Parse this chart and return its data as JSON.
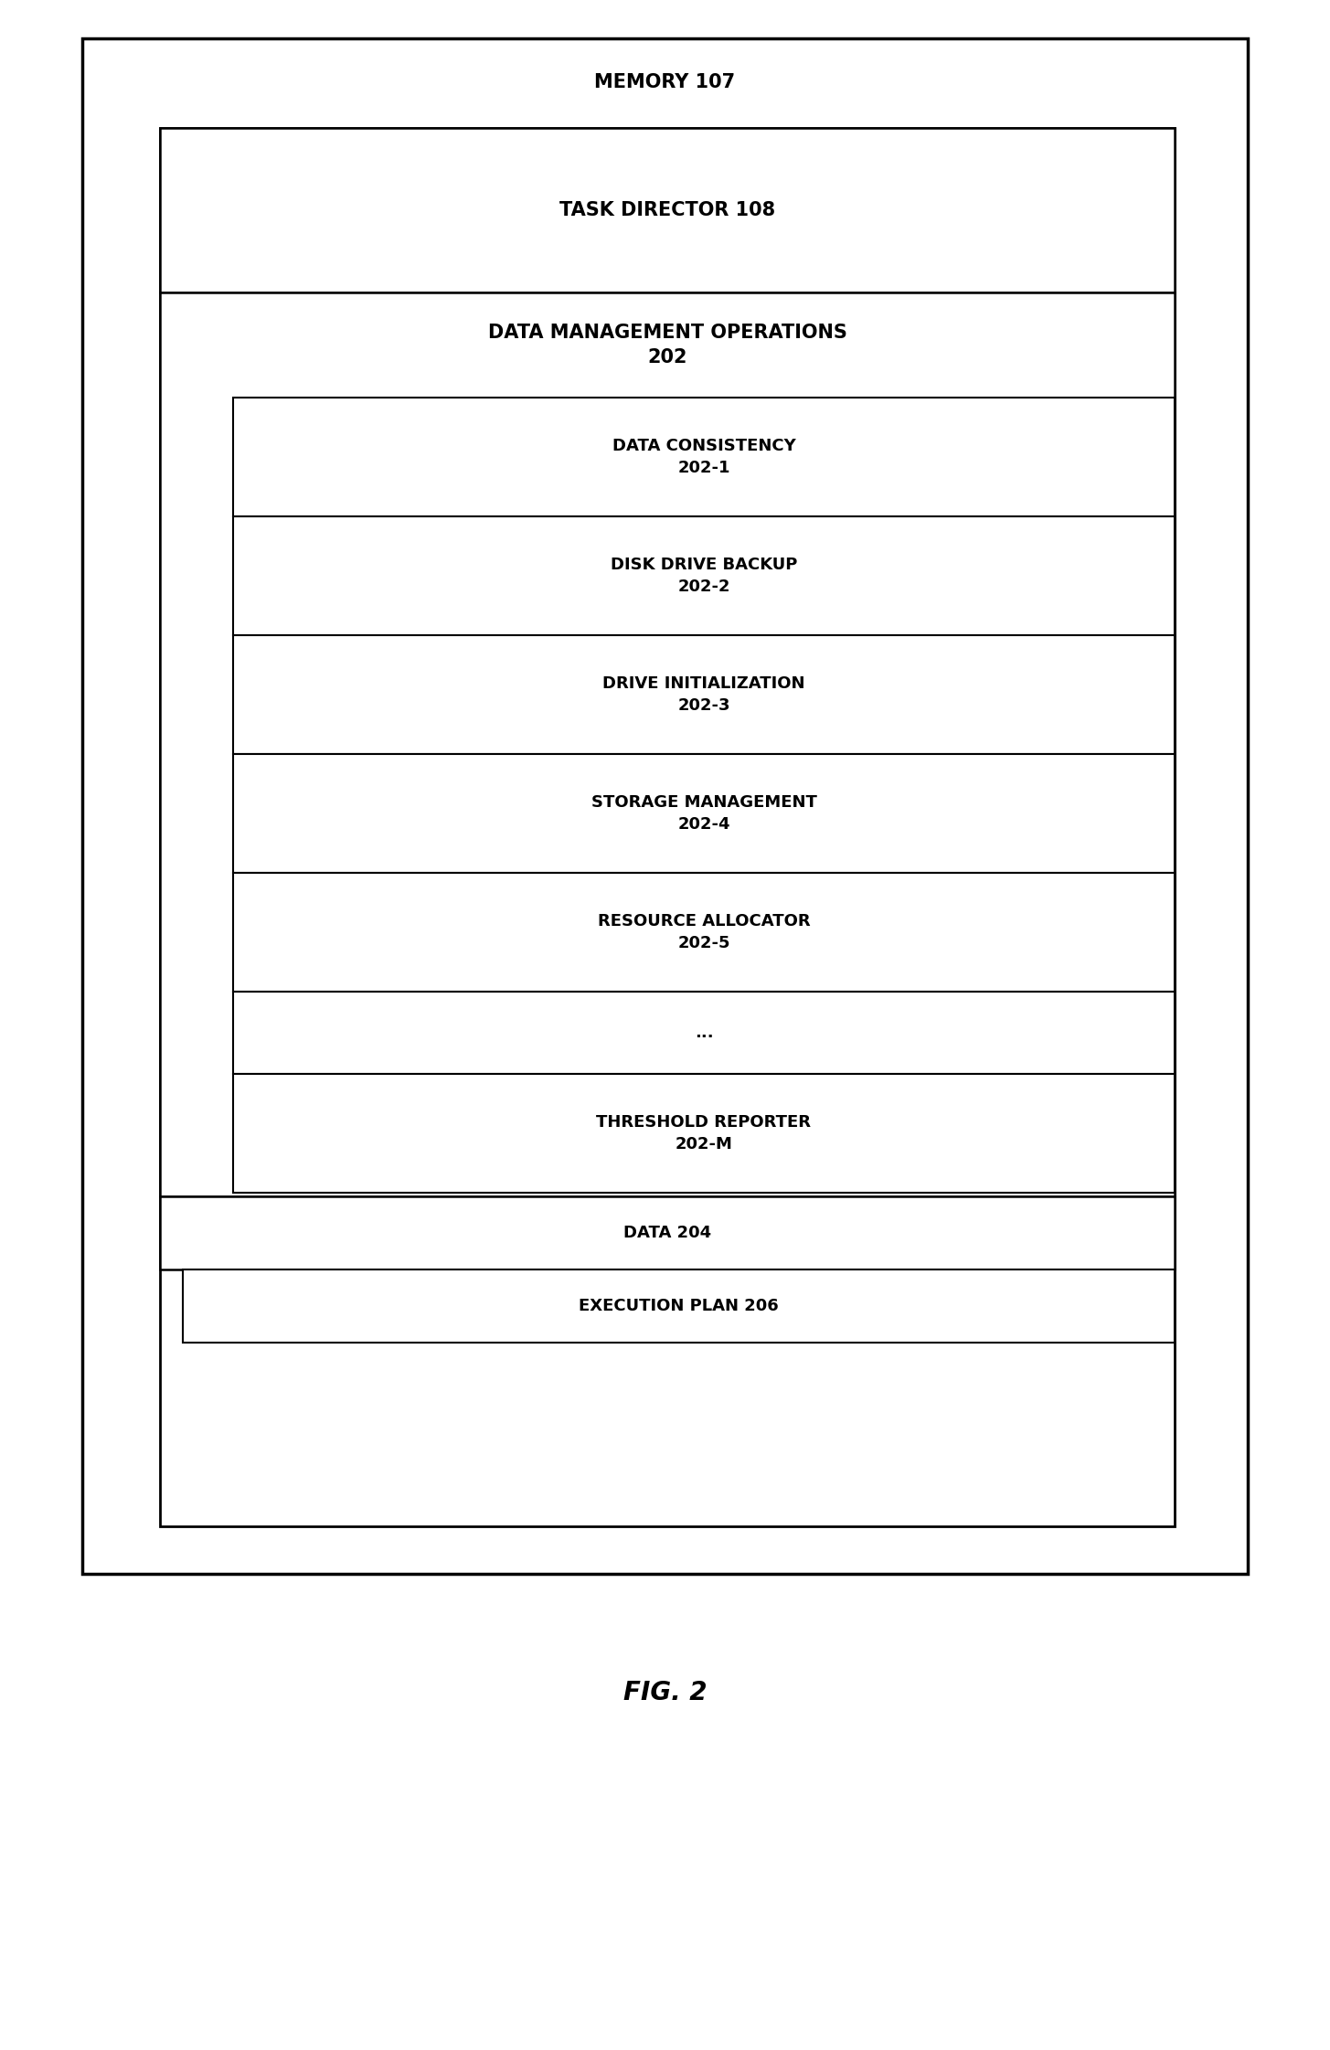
{
  "bg_color": "#ffffff",
  "fig_caption": "FIG. 2",
  "memory_label": "MEMORY 107",
  "task_director_label": "TASK DIRECTOR 108",
  "dmo_label": "DATA MANAGEMENT OPERATIONS\n202",
  "inner_boxes": [
    {
      "label": "DATA CONSISTENCY\n202-1"
    },
    {
      "label": "DISK DRIVE BACKUP\n202-2"
    },
    {
      "label": "DRIVE INITIALIZATION\n202-3"
    },
    {
      "label": "STORAGE MANAGEMENT\n202-4"
    },
    {
      "label": "RESOURCE ALLOCATOR\n202-5"
    },
    {
      "label": "..."
    },
    {
      "label": "THRESHOLD REPORTER\n202-M"
    }
  ],
  "data_label": "DATA 204",
  "exec_label": "EXECUTION PLAN 206",
  "font_size_title": 15,
  "font_size_box": 13,
  "font_size_small": 11,
  "font_size_caption": 20
}
